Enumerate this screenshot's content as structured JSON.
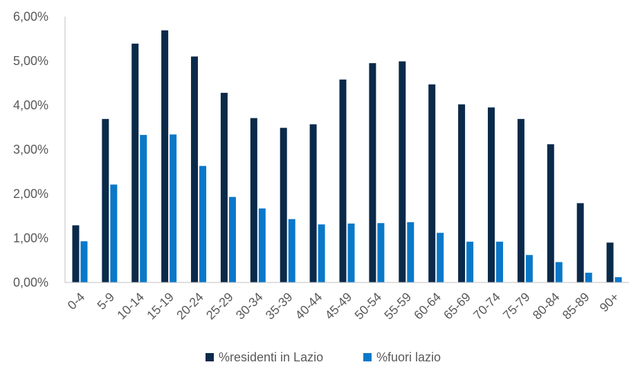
{
  "chart_data": {
    "type": "bar",
    "categories": [
      "0-4",
      "5-9",
      "10-14",
      "15-19",
      "20-24",
      "25-29",
      "30-34",
      "35-39",
      "40-44",
      "45-49",
      "50-54",
      "55-59",
      "60-64",
      "65-69",
      "70-74",
      "75-79",
      "80-84",
      "85-89",
      "90+"
    ],
    "series": [
      {
        "name": "%residenti in Lazio",
        "color": "#0b2a4a",
        "values": [
          1.29,
          3.69,
          5.39,
          5.69,
          5.1,
          4.28,
          3.71,
          3.49,
          3.57,
          4.58,
          4.95,
          4.99,
          4.47,
          4.02,
          3.95,
          3.69,
          3.12,
          1.79,
          0.9
        ]
      },
      {
        "name": "%fuori lazio",
        "color": "#0a78c9",
        "values": [
          0.93,
          2.21,
          3.33,
          3.34,
          2.63,
          1.93,
          1.67,
          1.43,
          1.31,
          1.33,
          1.34,
          1.36,
          1.12,
          0.92,
          0.92,
          0.62,
          0.46,
          0.22,
          0.12
        ]
      }
    ],
    "ylim": [
      0,
      6
    ],
    "yticks": [
      "0,00%",
      "1,00%",
      "2,00%",
      "3,00%",
      "4,00%",
      "5,00%",
      "6,00%"
    ],
    "legend_position": "bottom",
    "xlabel": "",
    "ylabel": ""
  }
}
